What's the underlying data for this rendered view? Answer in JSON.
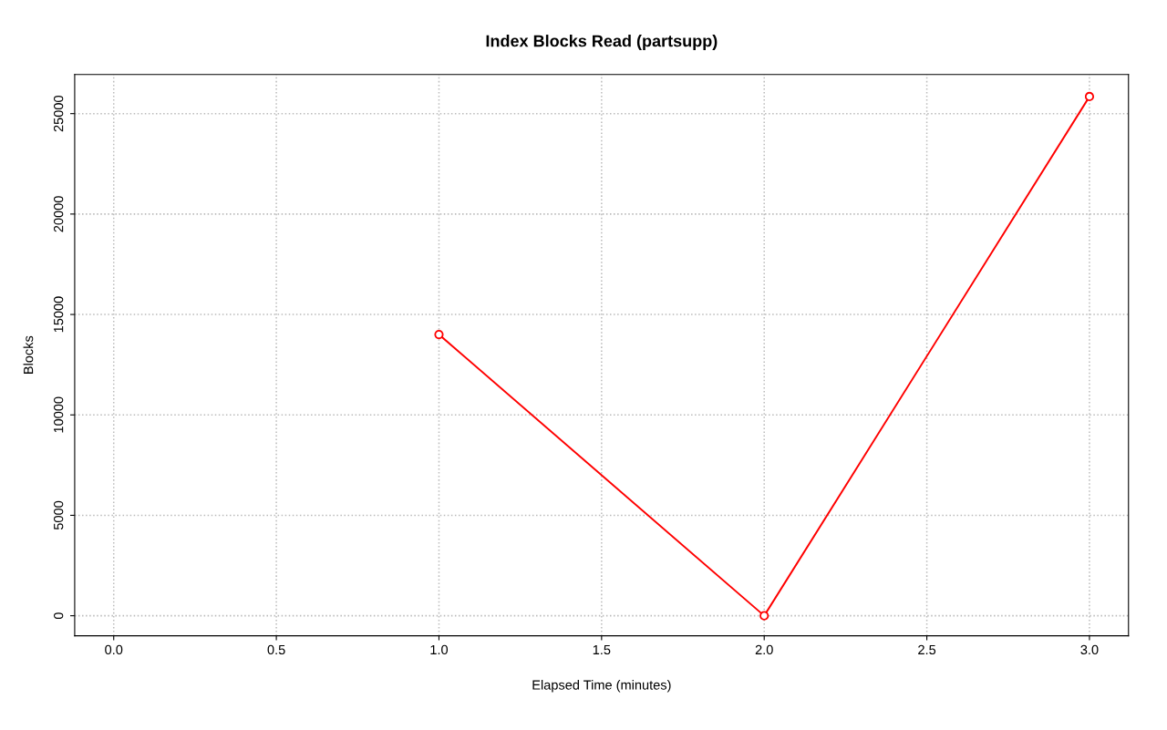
{
  "chart_data": {
    "type": "line",
    "title": "Index Blocks Read (partsupp)",
    "xlabel": "Elapsed Time (minutes)",
    "ylabel": "Blocks",
    "x": [
      1,
      2,
      3
    ],
    "series": [
      {
        "color": "#ff0000",
        "values": [
          14000,
          0,
          25850
        ]
      }
    ],
    "xlim": [
      -0.12,
      3.12
    ],
    "xticks": [
      {
        "value": 0,
        "label": "0.0"
      },
      0.5,
      {
        "value": 1,
        "label": "1.0"
      },
      1.5,
      {
        "value": 2,
        "label": "2.0"
      },
      2.5,
      {
        "value": 3,
        "label": "3.0"
      }
    ],
    "ylim": [
      -1000,
      26950
    ],
    "yticks": [
      0,
      5000,
      10000,
      15000,
      20000,
      25000
    ],
    "grid": true,
    "marker": "circle",
    "line_style": "solid",
    "legend": false
  }
}
